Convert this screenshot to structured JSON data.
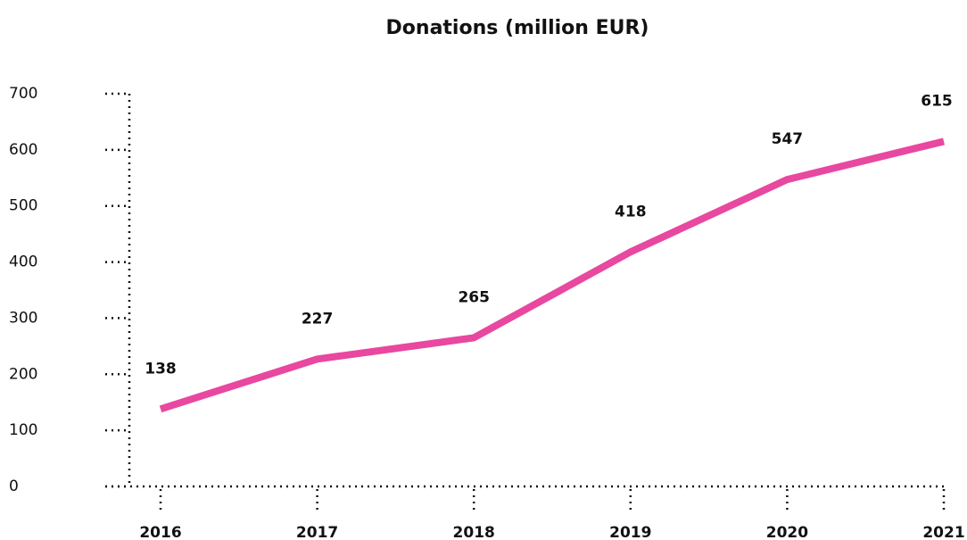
{
  "chart_data": {
    "type": "line",
    "title": "Donations (million EUR)",
    "categories": [
      "2016",
      "2017",
      "2018",
      "2019",
      "2020",
      "2021"
    ],
    "series": [
      {
        "name": "Donations",
        "color": "#e8489f",
        "values": [
          138,
          227,
          265,
          418,
          547,
          615
        ]
      }
    ],
    "ylim": [
      0,
      700
    ],
    "yticks": [
      0,
      100,
      200,
      300,
      400,
      500,
      600,
      700
    ],
    "grid": false
  }
}
